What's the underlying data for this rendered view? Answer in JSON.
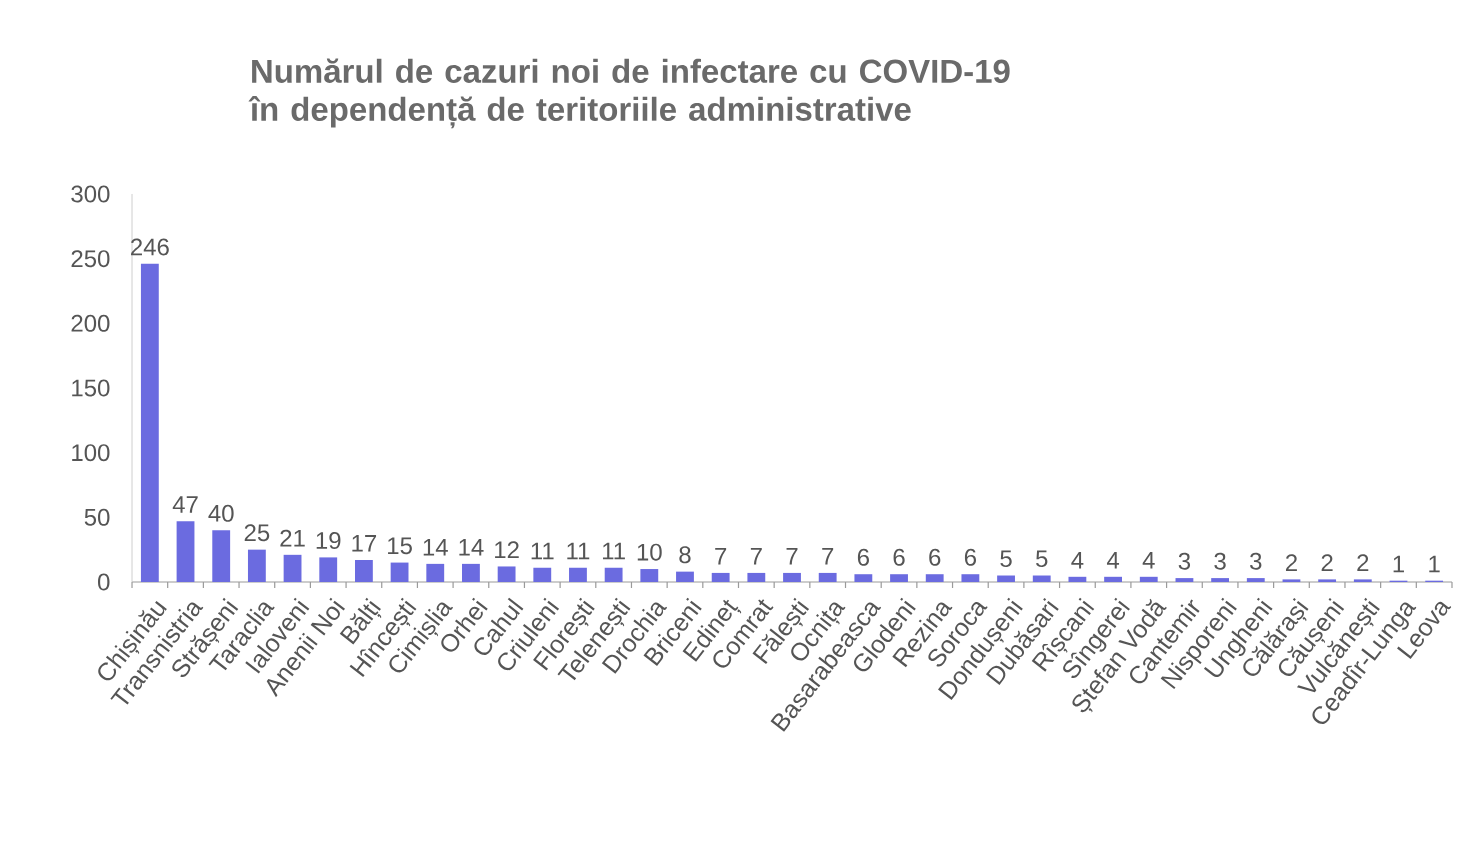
{
  "chart_data": {
    "type": "bar",
    "title": "Numărul de cazuri noi de infectare cu COVID-19 în dependență de teritoriile administrative",
    "categories": [
      "Chișinău",
      "Transnistria",
      "Strășeni",
      "Taraclia",
      "Ialoveni",
      "Anenii Noi",
      "Bălți",
      "Hîncești",
      "Cimișlia",
      "Orhei",
      "Cahul",
      "Criuleni",
      "Florești",
      "Telenești",
      "Drochia",
      "Briceni",
      "Edineț",
      "Comrat",
      "Fălești",
      "Ocnița",
      "Basarabeasca",
      "Glodeni",
      "Rezina",
      "Soroca",
      "Dondușeni",
      "Dubăsari",
      "Rîșcani",
      "Sîngerei",
      "Ștefan Vodă",
      "Cantemir",
      "Nisporeni",
      "Ungheni",
      "Călărași",
      "Căușeni",
      "Vulcănești",
      "Ceadîr-Lunga",
      "Leova"
    ],
    "values": [
      246,
      47,
      40,
      25,
      21,
      19,
      17,
      15,
      14,
      14,
      12,
      11,
      11,
      11,
      10,
      8,
      7,
      7,
      7,
      7,
      6,
      6,
      6,
      6,
      5,
      5,
      4,
      4,
      4,
      3,
      3,
      3,
      2,
      2,
      2,
      1,
      1
    ],
    "color": "#6b6be0",
    "ylim": [
      0,
      300
    ],
    "yticks": [
      0,
      50,
      100,
      150,
      200,
      250,
      300
    ],
    "data_labels": true
  }
}
